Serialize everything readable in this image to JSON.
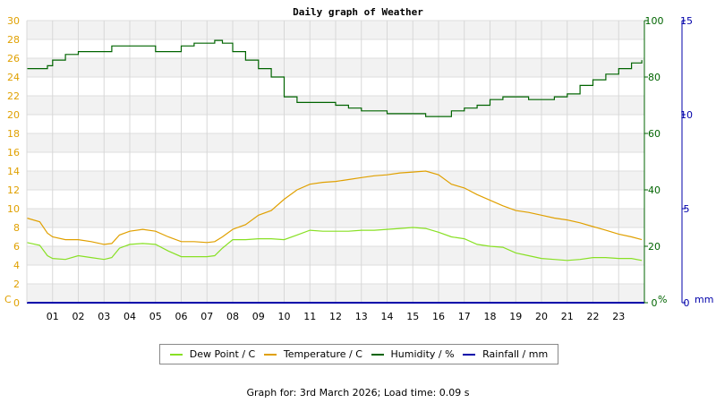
{
  "chart_data": {
    "type": "line",
    "title": "Daily graph of Weather",
    "x_ticks": [
      "01",
      "02",
      "03",
      "04",
      "05",
      "06",
      "07",
      "08",
      "09",
      "10",
      "11",
      "12",
      "13",
      "14",
      "15",
      "16",
      "17",
      "18",
      "19",
      "20",
      "21",
      "22",
      "23"
    ],
    "xlim": [
      0,
      24
    ],
    "axes": {
      "temperature": {
        "unit": "C",
        "ylim": [
          0,
          30
        ],
        "ticks": [
          0,
          2,
          4,
          6,
          8,
          10,
          12,
          14,
          16,
          18,
          20,
          22,
          24,
          26,
          28,
          30
        ],
        "color": "#e0a000"
      },
      "humidity": {
        "unit": "%",
        "ylim": [
          0,
          100
        ],
        "ticks": [
          0,
          20,
          40,
          60,
          80,
          100
        ],
        "color": "#006400"
      },
      "rainfall": {
        "unit": "mm",
        "ylim": [
          0,
          15
        ],
        "ticks": [
          0,
          5,
          10,
          15
        ],
        "color": "#0000aa"
      }
    },
    "series": [
      {
        "name": "Dew Point / C",
        "axis": "temperature",
        "color": "#88e024",
        "x": [
          0,
          0.5,
          0.8,
          1,
          1.5,
          2,
          2.5,
          3,
          3.3,
          3.6,
          4,
          4.5,
          5,
          5.5,
          6,
          6.5,
          7,
          7.3,
          7.6,
          8,
          8.5,
          9,
          9.5,
          10,
          10.5,
          11,
          11.5,
          12,
          12.5,
          13,
          13.5,
          14,
          14.5,
          15,
          15.5,
          16,
          16.5,
          17,
          17.5,
          18,
          18.5,
          19,
          19.5,
          20,
          20.5,
          21,
          21.5,
          22,
          22.5,
          23,
          23.5,
          23.9
        ],
        "y": [
          6.4,
          6.1,
          5.0,
          4.7,
          4.6,
          5.0,
          4.8,
          4.6,
          4.8,
          5.8,
          6.2,
          6.3,
          6.2,
          5.5,
          4.9,
          4.9,
          4.9,
          5.0,
          5.8,
          6.7,
          6.7,
          6.8,
          6.8,
          6.7,
          7.2,
          7.7,
          7.6,
          7.6,
          7.6,
          7.7,
          7.7,
          7.8,
          7.9,
          8.0,
          7.9,
          7.5,
          7.0,
          6.8,
          6.2,
          6.0,
          5.9,
          5.3,
          5.0,
          4.7,
          4.6,
          4.5,
          4.6,
          4.8,
          4.8,
          4.7,
          4.7,
          4.5
        ]
      },
      {
        "name": "Temperature / C",
        "axis": "temperature",
        "color": "#e0a000",
        "x": [
          0,
          0.5,
          0.8,
          1,
          1.5,
          2,
          2.5,
          3,
          3.3,
          3.6,
          4,
          4.5,
          5,
          5.5,
          6,
          6.5,
          7,
          7.3,
          7.6,
          8,
          8.5,
          9,
          9.5,
          10,
          10.5,
          11,
          11.5,
          12,
          12.5,
          13,
          13.5,
          14,
          14.5,
          15,
          15.5,
          16,
          16.5,
          17,
          17.5,
          18,
          18.5,
          19,
          19.5,
          20,
          20.5,
          21,
          21.5,
          22,
          22.5,
          23,
          23.5,
          23.9
        ],
        "y": [
          9.0,
          8.6,
          7.4,
          7.0,
          6.7,
          6.7,
          6.5,
          6.2,
          6.3,
          7.2,
          7.6,
          7.8,
          7.6,
          7.0,
          6.5,
          6.5,
          6.4,
          6.5,
          7.0,
          7.8,
          8.3,
          9.3,
          9.8,
          11.0,
          12.0,
          12.6,
          12.8,
          12.9,
          13.1,
          13.3,
          13.5,
          13.6,
          13.8,
          13.9,
          14.0,
          13.6,
          12.6,
          12.2,
          11.5,
          10.9,
          10.3,
          9.8,
          9.6,
          9.3,
          9.0,
          8.8,
          8.5,
          8.1,
          7.7,
          7.3,
          7.0,
          6.7
        ]
      },
      {
        "name": "Humidity / %",
        "axis": "humidity",
        "color": "#006400",
        "x": [
          0,
          0.5,
          0.8,
          1,
          1.5,
          2,
          2.5,
          3,
          3.3,
          3.6,
          4,
          4.5,
          5,
          5.5,
          6,
          6.5,
          7,
          7.3,
          7.6,
          8,
          8.5,
          9,
          9.5,
          10,
          10.5,
          11,
          11.5,
          12,
          12.5,
          13,
          13.5,
          14,
          14.5,
          15,
          15.5,
          16,
          16.5,
          17,
          17.5,
          18,
          18.5,
          19,
          19.5,
          20,
          20.5,
          21,
          21.5,
          22,
          22.5,
          23,
          23.5,
          23.9
        ],
        "y": [
          83,
          83,
          84,
          86,
          88,
          89,
          89,
          89,
          91,
          91,
          91,
          91,
          89,
          89,
          91,
          92,
          92,
          93,
          92,
          89,
          86,
          83,
          80,
          73,
          71,
          71,
          71,
          70,
          69,
          68,
          68,
          67,
          67,
          67,
          66,
          66,
          68,
          69,
          70,
          72,
          73,
          73,
          72,
          72,
          73,
          74,
          77,
          79,
          81,
          83,
          85,
          86
        ]
      },
      {
        "name": "Rainfall / mm",
        "axis": "rainfall",
        "color": "#0000aa",
        "x": [
          0,
          24
        ],
        "y": [
          0,
          0
        ]
      }
    ],
    "grid": true,
    "legend": "bottom",
    "footer": "Graph for: 3rd March 2026; Load time: 0.09 s"
  }
}
